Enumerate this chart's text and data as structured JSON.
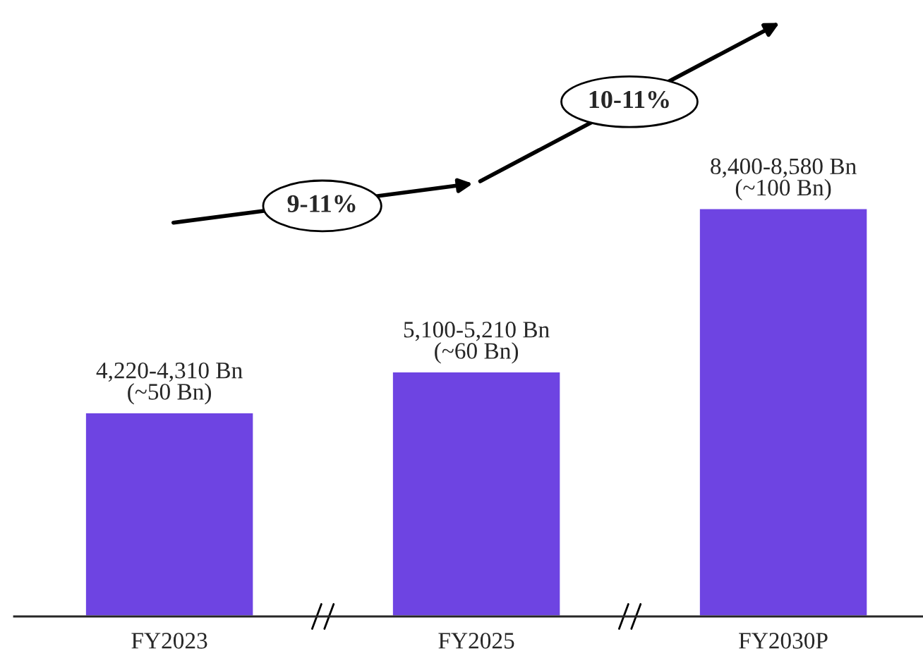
{
  "chart_data": {
    "type": "bar",
    "tick_labels": "x",
    "categories": [
      "FY2023",
      "FY2025",
      "FY2030P"
    ],
    "values": [
      50,
      60,
      100
    ],
    "color": "#6e44e2",
    "value_labels": [
      "4,220-4,310 Bn\n(~50 Bn)",
      "5,100-5,210 Bn\n(~60 Bn)",
      "8,400-8,580 Bn\n(~100 Bn)"
    ],
    "annotations": [
      "9-11%",
      "10-11%"
    ],
    "grid": false,
    "legend": false
  }
}
